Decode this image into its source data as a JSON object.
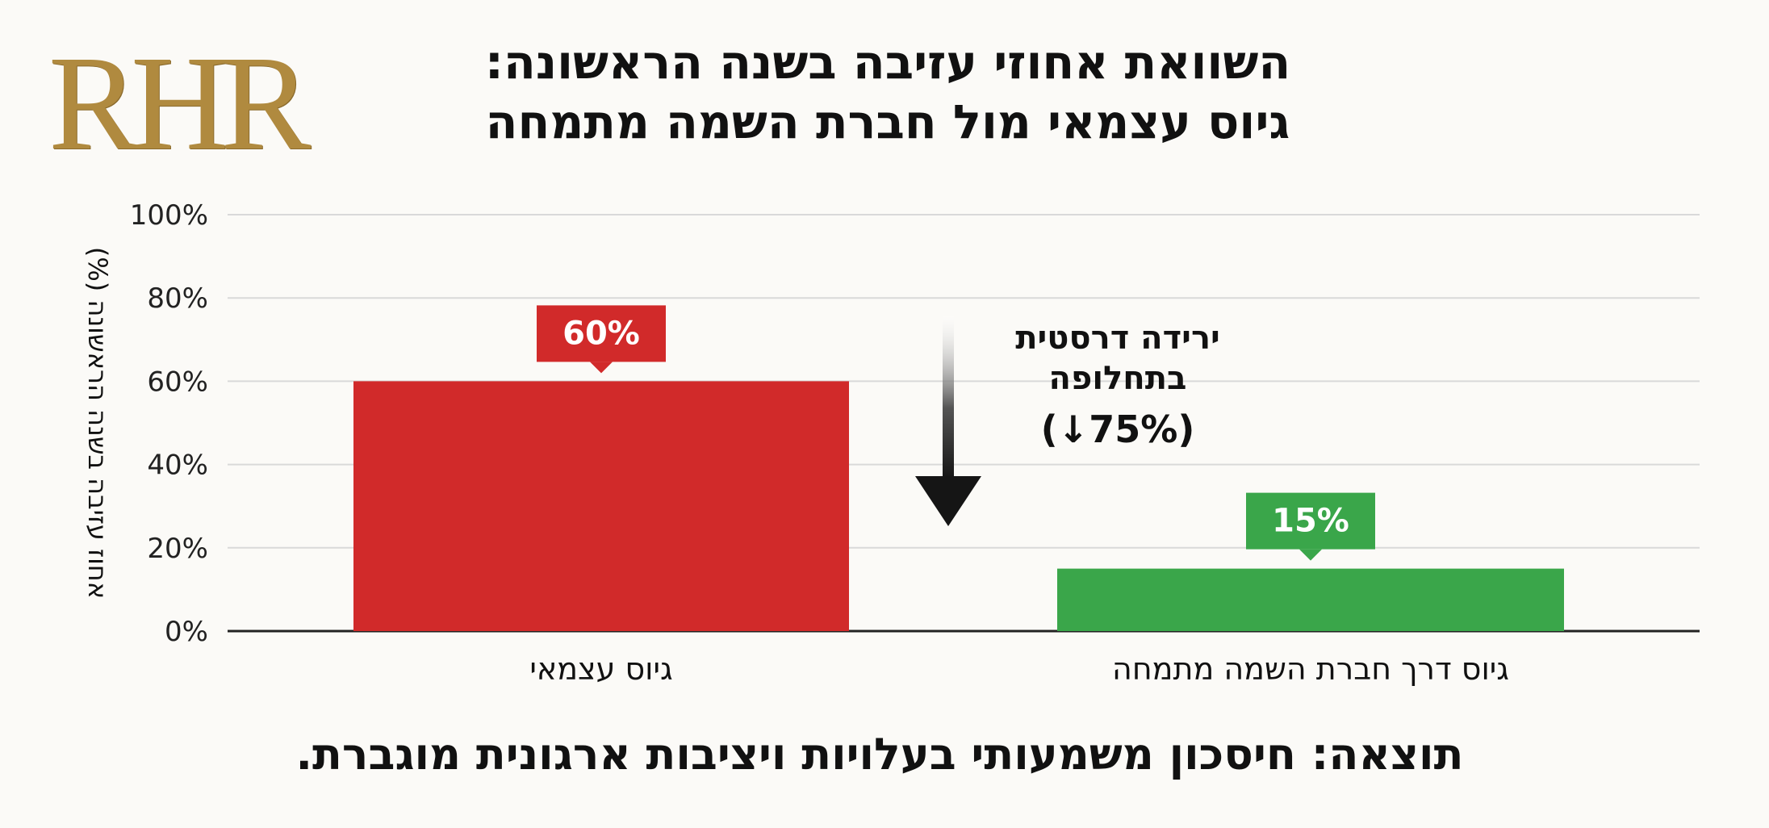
{
  "logo": {
    "text": "RHR"
  },
  "title": {
    "line1": "השוואת אחוזי עזיבה בשנה הראשונה:",
    "line2": "גיוס עצמאי מול חברת השמה מתמחה"
  },
  "chart_data": {
    "type": "bar",
    "categories": [
      "גיוס עצמאי",
      "גיוס דרך חברת השמה מתמחה"
    ],
    "values": [
      60,
      15
    ],
    "value_labels": [
      "60%",
      "15%"
    ],
    "colors": [
      "#d12a2a",
      "#3aa64a"
    ],
    "ylabel": "אחוז עזיבה בשנה הראשונה (%)",
    "ylim": [
      0,
      100
    ],
    "yticks": [
      0,
      20,
      40,
      60,
      80,
      100
    ],
    "ytick_labels": [
      "0%",
      "20%",
      "40%",
      "60%",
      "80%",
      "100%"
    ],
    "grid": true,
    "annotation": {
      "lines": [
        "ירידה דרסטית",
        "בתחלופה",
        "(75%↓)"
      ]
    }
  },
  "conclusion": "תוצאה: חיסכון משמעותי בעלויות ויציבות ארגונית מוגברת."
}
